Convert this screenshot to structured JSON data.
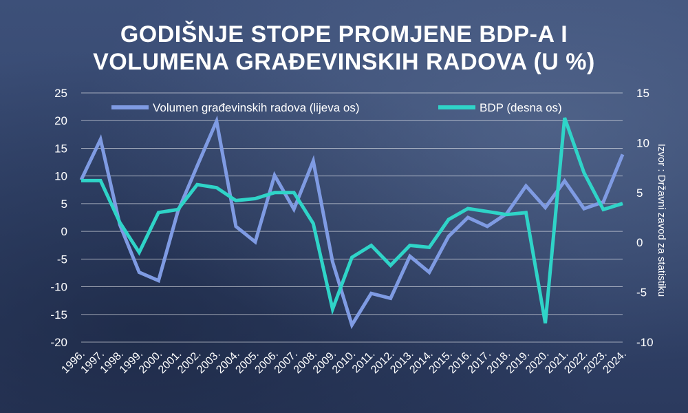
{
  "title_lines": [
    "GODIŠNJE STOPE PROMJENE BDP-A I",
    "VOLUMENA GRAĐEVINSKIH RADOVA (U %)"
  ],
  "source": "Izvor : Državni zavod za statistiku",
  "colors": {
    "construction": "#7f9be3",
    "gdp": "#2fd4c8",
    "text": "#ffffff",
    "grid": "#ffffff"
  },
  "chart_data": {
    "type": "line",
    "categories": [
      "1996.",
      "1997.",
      "1998.",
      "1999.",
      "2000.",
      "2001.",
      "2002.",
      "2003.",
      "2004.",
      "2005.",
      "2006.",
      "2007.",
      "2008.",
      "2009.",
      "2010.",
      "2011.",
      "2012.",
      "2013.",
      "2014.",
      "2015.",
      "2016.",
      "2017.",
      "2018.",
      "2019.",
      "2020.",
      "2021.",
      "2022.",
      "2023.",
      "2024."
    ],
    "series": [
      {
        "name": "Volumen građevinskih radova (lijeva os)",
        "axis": "left",
        "color": "#7f9be3",
        "values": [
          9.3,
          16.6,
          1.2,
          -7.4,
          -8.9,
          3.6,
          11.8,
          19.9,
          0.9,
          -1.9,
          10.1,
          4.0,
          12.7,
          -5.5,
          -16.9,
          -11.2,
          -12.1,
          -4.5,
          -7.4,
          -0.9,
          2.5,
          0.9,
          3.2,
          8.2,
          4.3,
          9.1,
          4.1,
          5.3,
          13.9
        ]
      },
      {
        "name": "BDP (desna os)",
        "axis": "right",
        "color": "#2fd4c8",
        "values": [
          6.2,
          6.2,
          2.0,
          -1.0,
          3.0,
          3.3,
          5.8,
          5.5,
          4.2,
          4.4,
          5.0,
          5.0,
          1.9,
          -6.7,
          -1.5,
          -0.3,
          -2.3,
          -0.3,
          -0.5,
          2.3,
          3.4,
          3.1,
          2.8,
          3.0,
          -8.1,
          12.5,
          7.0,
          3.3,
          3.9
        ]
      }
    ],
    "left_axis": {
      "ylim": [
        -20,
        25
      ],
      "ticks": [
        "25",
        "20",
        "15",
        "10",
        "5",
        "0",
        "-5",
        "-10",
        "-15",
        "-20"
      ]
    },
    "right_axis": {
      "ylim": [
        -10,
        15
      ],
      "ticks": [
        "15",
        "10",
        "5",
        "0",
        "-5",
        "-10"
      ]
    },
    "grid": true,
    "legend_position": "top"
  }
}
